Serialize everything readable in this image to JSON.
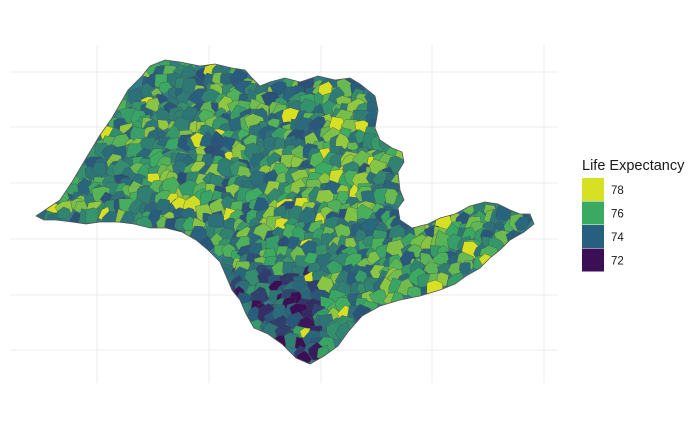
{
  "chart_data": {
    "type": "choropleth",
    "region": "São Paulo state municipalities",
    "fill_variable": "Life Expectancy",
    "legend": {
      "title": "Life Expectancy",
      "entries": [
        {
          "label": "78",
          "value": 78,
          "color": "#d7e023"
        },
        {
          "label": "76",
          "value": 76,
          "color": "#3aaa63"
        },
        {
          "label": "74",
          "value": 74,
          "color": "#275f80"
        },
        {
          "label": "72",
          "value": 72,
          "color": "#3b0f56"
        }
      ]
    },
    "value_range": [
      71.5,
      78.5
    ],
    "grid": true,
    "axes_labels_shown": false,
    "municipality_border_color": "#4a4a4a"
  }
}
